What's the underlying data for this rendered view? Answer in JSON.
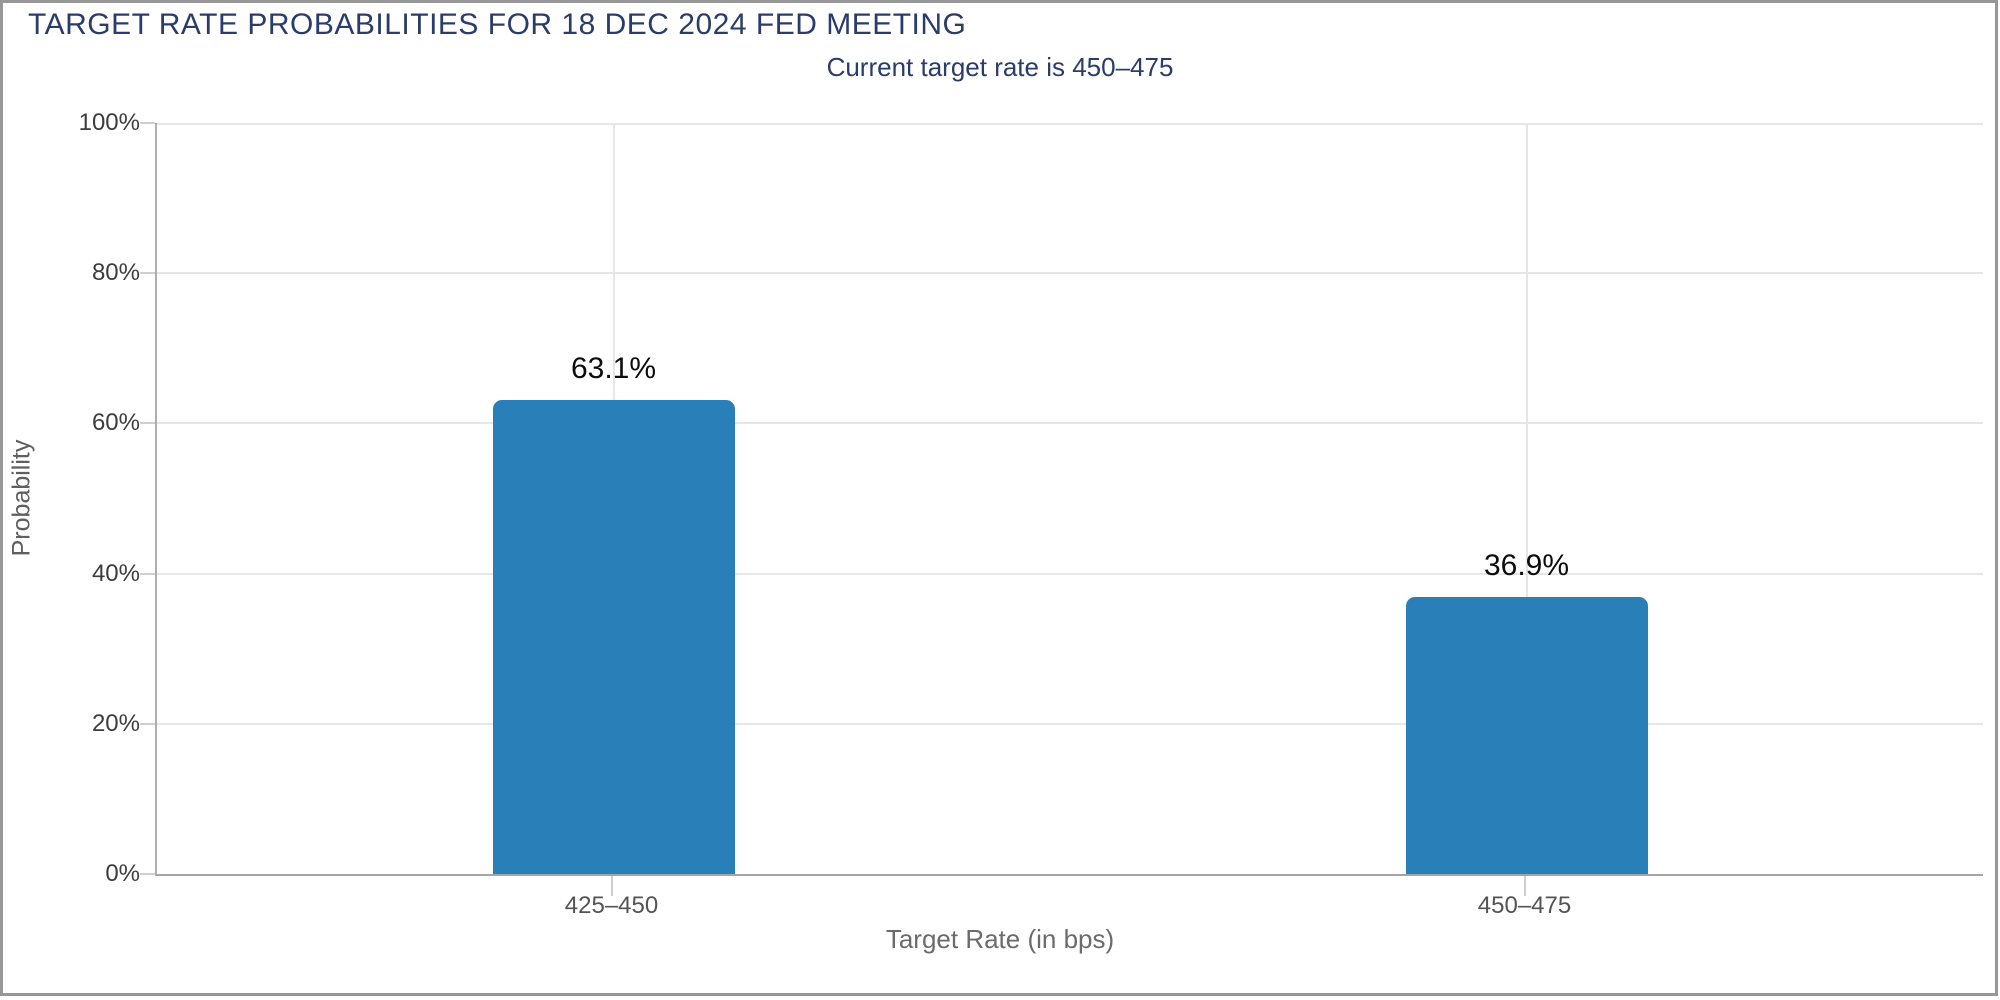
{
  "header": {
    "title": "TARGET RATE PROBABILITIES FOR 18 DEC 2024 FED MEETING",
    "subtitle": "Current target rate is 450–475"
  },
  "chart_data": {
    "type": "bar",
    "title": "TARGET RATE PROBABILITIES FOR 18 DEC 2024 FED MEETING",
    "subtitle": "Current target rate is 450–475",
    "categories": [
      "425–450",
      "450–475"
    ],
    "values": [
      63.1,
      36.9
    ],
    "value_labels": [
      "63.1%",
      "36.9%"
    ],
    "xlabel": "Target Rate (in bps)",
    "ylabel": "Probability",
    "ylim": [
      0,
      100
    ],
    "ytick_labels": [
      "0%",
      "20%",
      "40%",
      "60%",
      "80%",
      "100%"
    ],
    "grid": true,
    "legend": "none",
    "colors": {
      "bar": "#2980b9",
      "title_navy": "#2a3c6a",
      "gridline": "#e6e6e6",
      "axis_line": "#a5a5a5",
      "value_label": "#0d0d0d",
      "tick_label": "#3d3d3d",
      "axis_title": "#6b6b6b"
    }
  }
}
